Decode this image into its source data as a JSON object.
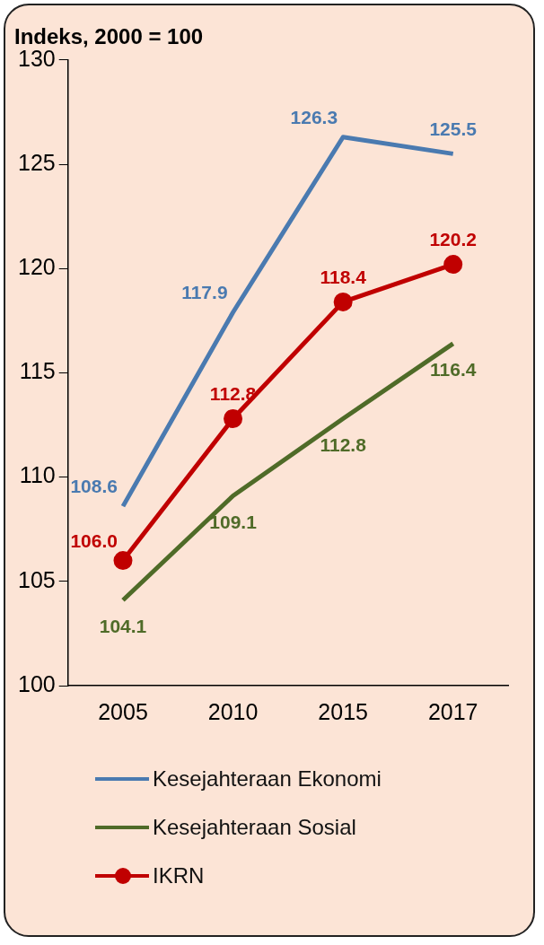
{
  "chart_data": {
    "type": "line",
    "title": "Indeks, 2000 = 100",
    "categories": [
      "2005",
      "2010",
      "2015",
      "2017"
    ],
    "ylim": [
      100,
      130
    ],
    "yticks": [
      100,
      105,
      110,
      115,
      120,
      125,
      130
    ],
    "grid": false,
    "legend": "bottom",
    "line_style": "solid",
    "series": [
      {
        "name": "Kesejahteraan Ekonomi",
        "color": "#4a7ab0",
        "marker": "none",
        "values": [
          108.6,
          117.9,
          126.3,
          125.5
        ],
        "value_labels": [
          "108.6",
          "117.9",
          "126.3",
          "125.5"
        ]
      },
      {
        "name": "Kesejahteraan Sosial",
        "color": "#4f6b28",
        "marker": "none",
        "values": [
          104.1,
          109.1,
          112.8,
          116.4
        ],
        "value_labels": [
          "104.1",
          "109.1",
          "112.8",
          "116.4"
        ]
      },
      {
        "name": "IKRN",
        "color": "#c00000",
        "marker": "circle",
        "values": [
          106.0,
          112.8,
          118.4,
          120.2
        ],
        "value_labels": [
          "106.0",
          "112.8",
          "118.4",
          "120.2"
        ]
      }
    ]
  }
}
